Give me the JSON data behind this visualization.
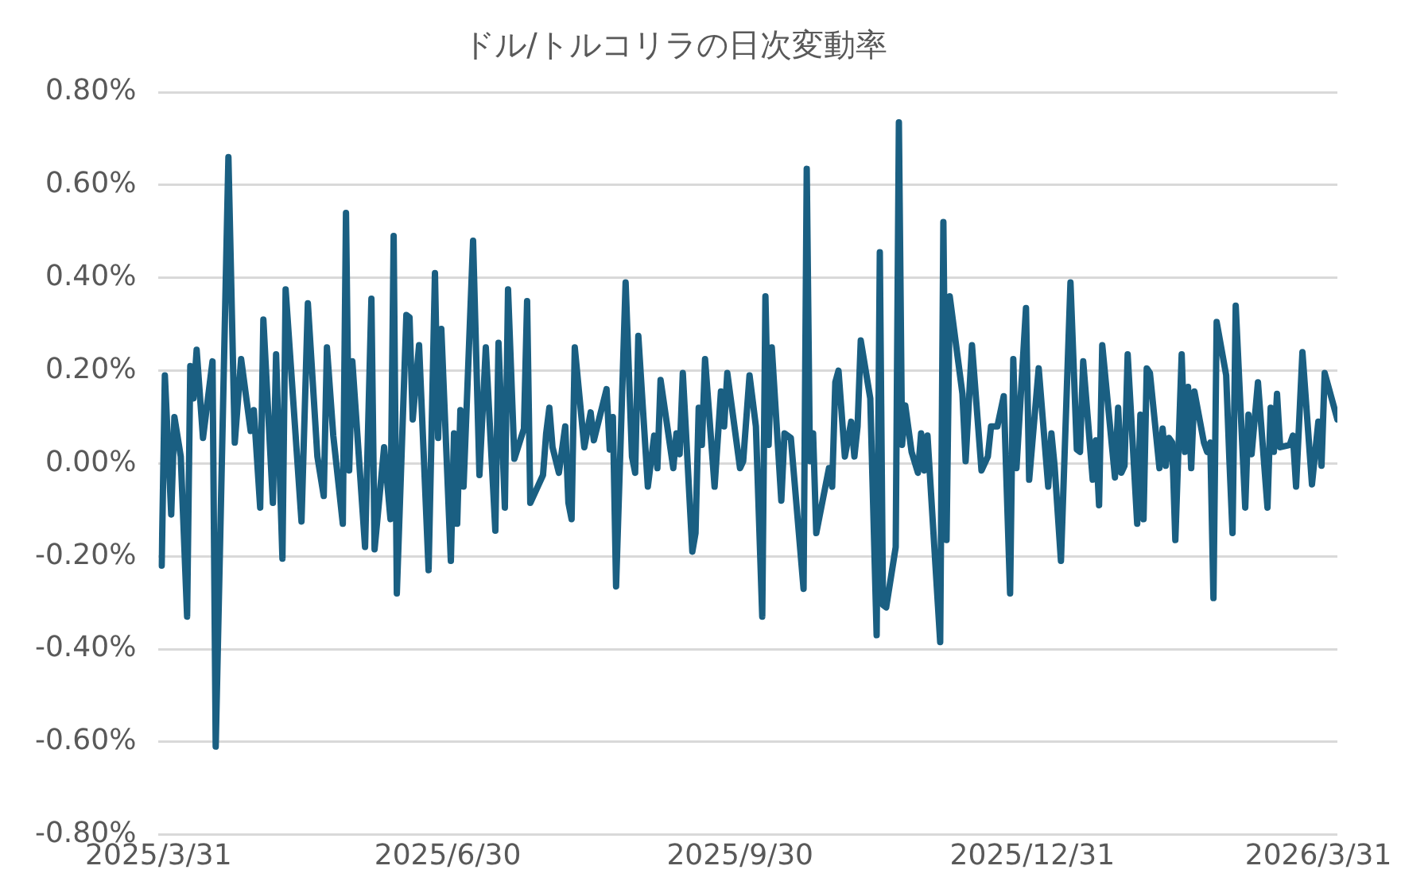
{
  "chart_data": {
    "type": "line",
    "title": "ドル/トルコリラの日次変動率",
    "xlim": [
      "2025-03-31",
      "2026-04-06"
    ],
    "xticks": [
      {
        "value": "2025-03-31",
        "label": "2025/3/31"
      },
      {
        "value": "2025-06-30",
        "label": "2025/6/30"
      },
      {
        "value": "2025-09-30",
        "label": "2025/9/30"
      },
      {
        "value": "2025-12-31",
        "label": "2025/12/31"
      },
      {
        "value": "2026-03-31",
        "label": "2026/3/31"
      }
    ],
    "ylim": [
      -0.8,
      0.8
    ],
    "yticks": [
      {
        "value": -0.8,
        "label": "-0.80%"
      },
      {
        "value": -0.6,
        "label": "-0.60%"
      },
      {
        "value": -0.4,
        "label": "-0.40%"
      },
      {
        "value": -0.2,
        "label": "-0.20%"
      },
      {
        "value": 0,
        "label": "0.00%"
      },
      {
        "value": 0.2,
        "label": "0.20%"
      },
      {
        "value": 0.4,
        "label": "0.40%"
      },
      {
        "value": 0.6,
        "label": "0.60%"
      },
      {
        "value": 0.8,
        "label": "0.80%"
      }
    ],
    "grid": "y",
    "marker": "none",
    "line_style": "solid",
    "x": [
      "2025-04-01",
      "2025-04-02",
      "2025-04-04",
      "2025-04-05",
      "2025-04-07",
      "2025-04-09",
      "2025-04-10",
      "2025-04-11",
      "2025-04-12",
      "2025-04-14",
      "2025-04-17",
      "2025-04-18",
      "2025-04-22",
      "2025-04-24",
      "2025-04-26",
      "2025-04-29",
      "2025-04-30",
      "2025-05-02",
      "2025-05-03",
      "2025-05-06",
      "2025-05-07",
      "2025-05-09",
      "2025-05-10",
      "2025-05-15",
      "2025-05-17",
      "2025-05-20",
      "2025-05-22",
      "2025-05-23",
      "2025-05-25",
      "2025-05-28",
      "2025-05-29",
      "2025-05-30",
      "2025-05-31",
      "2025-06-04",
      "2025-06-06",
      "2025-06-07",
      "2025-06-10",
      "2025-06-12",
      "2025-06-13",
      "2025-06-14",
      "2025-06-17",
      "2025-06-18",
      "2025-06-19",
      "2025-06-21",
      "2025-06-24",
      "2025-06-26",
      "2025-06-27",
      "2025-06-28",
      "2025-07-01",
      "2025-07-02",
      "2025-07-03",
      "2025-07-04",
      "2025-07-05",
      "2025-07-08",
      "2025-07-10",
      "2025-07-12",
      "2025-07-15",
      "2025-07-16",
      "2025-07-18",
      "2025-07-19",
      "2025-07-21",
      "2025-07-24",
      "2025-07-25",
      "2025-07-26",
      "2025-07-30",
      "2025-07-31",
      "2025-08-01",
      "2025-08-02",
      "2025-08-04",
      "2025-08-06",
      "2025-08-07",
      "2025-08-08",
      "2025-08-09",
      "2025-08-12",
      "2025-08-14",
      "2025-08-15",
      "2025-08-19",
      "2025-08-20",
      "2025-08-21",
      "2025-08-22",
      "2025-08-25",
      "2025-08-27",
      "2025-08-28",
      "2025-08-29",
      "2025-09-01",
      "2025-09-03",
      "2025-09-04",
      "2025-09-05",
      "2025-09-09",
      "2025-09-10",
      "2025-09-11",
      "2025-09-12",
      "2025-09-15",
      "2025-09-16",
      "2025-09-17",
      "2025-09-18",
      "2025-09-19",
      "2025-09-22",
      "2025-09-24",
      "2025-09-25",
      "2025-09-26",
      "2025-09-30",
      "2025-10-01",
      "2025-10-03",
      "2025-10-05",
      "2025-10-07",
      "2025-10-08",
      "2025-10-09",
      "2025-10-10",
      "2025-10-13",
      "2025-10-14",
      "2025-10-16",
      "2025-10-20",
      "2025-10-21",
      "2025-10-22",
      "2025-10-23",
      "2025-10-24",
      "2025-10-28",
      "2025-10-29",
      "2025-10-30",
      "2025-10-31",
      "2025-11-02",
      "2025-11-04",
      "2025-11-05",
      "2025-11-06",
      "2025-11-07",
      "2025-11-10",
      "2025-11-12",
      "2025-11-13",
      "2025-11-14",
      "2025-11-15",
      "2025-11-18",
      "2025-11-19",
      "2025-11-20",
      "2025-11-21",
      "2025-11-23",
      "2025-11-25",
      "2025-11-26",
      "2025-11-27",
      "2025-11-28",
      "2025-12-02",
      "2025-12-03",
      "2025-12-04",
      "2025-12-05",
      "2025-12-09",
      "2025-12-10",
      "2025-12-12",
      "2025-12-15",
      "2025-12-17",
      "2025-12-18",
      "2025-12-20",
      "2025-12-22",
      "2025-12-24",
      "2025-12-25",
      "2025-12-26",
      "2025-12-29",
      "2025-12-30",
      "2026-01-02",
      "2026-01-05",
      "2026-01-06",
      "2026-01-07",
      "2026-01-09",
      "2026-01-12",
      "2026-01-14",
      "2026-01-15",
      "2026-01-16",
      "2026-01-19",
      "2026-01-20",
      "2026-01-21",
      "2026-01-22",
      "2026-01-26",
      "2026-01-27",
      "2026-01-28",
      "2026-01-29",
      "2026-01-30",
      "2026-02-02",
      "2026-02-03",
      "2026-02-04",
      "2026-02-05",
      "2026-02-06",
      "2026-02-09",
      "2026-02-10",
      "2026-02-11",
      "2026-02-12",
      "2026-02-13",
      "2026-02-14",
      "2026-02-16",
      "2026-02-17",
      "2026-02-18",
      "2026-02-19",
      "2026-02-20",
      "2026-02-23",
      "2026-02-24",
      "2026-02-25",
      "2026-02-26",
      "2026-02-27",
      "2026-03-02",
      "2026-03-03",
      "2026-03-04",
      "2026-03-05",
      "2026-03-08",
      "2026-03-09",
      "2026-03-10",
      "2026-03-12",
      "2026-03-15",
      "2026-03-16",
      "2026-03-17",
      "2026-03-18",
      "2026-03-19",
      "2026-03-22",
      "2026-03-23",
      "2026-03-24",
      "2026-03-26",
      "2026-03-29",
      "2026-03-31",
      "2026-04-01",
      "2026-04-02",
      "2026-04-06"
    ],
    "series": [
      {
        "color": "#1a5f82",
        "values": [
          -0.22,
          0.19,
          -0.11,
          0.1,
          0.015,
          -0.33,
          0.21,
          0.14,
          0.245,
          0.055,
          0.22,
          -0.61,
          0.66,
          0.045,
          0.225,
          0.07,
          0.115,
          -0.095,
          0.31,
          -0.085,
          0.235,
          -0.205,
          0.375,
          -0.125,
          0.345,
          0.015,
          -0.07,
          0.25,
          0.06,
          -0.13,
          0.54,
          -0.015,
          0.22,
          -0.18,
          0.355,
          -0.185,
          0.035,
          -0.12,
          0.49,
          -0.28,
          0.32,
          0.315,
          0.095,
          0.255,
          -0.23,
          0.41,
          0.055,
          0.29,
          -0.21,
          0.065,
          -0.13,
          0.115,
          -0.05,
          0.48,
          -0.025,
          0.25,
          -0.145,
          0.26,
          -0.095,
          0.375,
          0.01,
          0.075,
          0.35,
          -0.085,
          -0.025,
          0.065,
          0.12,
          0.035,
          -0.02,
          0.08,
          -0.085,
          -0.12,
          0.25,
          0.035,
          0.11,
          0.05,
          0.16,
          0.03,
          0.1,
          -0.265,
          0.39,
          0.015,
          -0.02,
          0.275,
          -0.05,
          0.06,
          -0.01,
          0.18,
          -0.01,
          0.065,
          0.02,
          0.195,
          -0.19,
          -0.15,
          0.12,
          0.04,
          0.225,
          -0.05,
          0.155,
          0.08,
          0.195,
          -0.01,
          0.005,
          0.19,
          0.08,
          -0.33,
          0.36,
          0.04,
          0.25,
          -0.08,
          0.065,
          0.055,
          -0.27,
          0.635,
          0.005,
          0.065,
          -0.15,
          -0.01,
          -0.05,
          0.175,
          0.2,
          0.015,
          0.09,
          0.015,
          0.08,
          0.265,
          0.14,
          -0.37,
          0.455,
          -0.305,
          -0.31,
          -0.18,
          0.735,
          0.04,
          0.125,
          0.025,
          -0.02,
          0.065,
          -0.015,
          0.06,
          -0.385,
          0.52,
          -0.165,
          0.36,
          0.15,
          0.005,
          0.255,
          -0.015,
          0.015,
          0.08,
          0.08,
          0.145,
          -0.28,
          0.225,
          -0.01,
          0.335,
          -0.035,
          0.205,
          -0.05,
          0.065,
          -0.005,
          -0.21,
          0.39,
          0.03,
          0.025,
          0.22,
          -0.035,
          0.05,
          -0.09,
          0.255,
          -0.03,
          0.12,
          -0.02,
          -0.005,
          0.235,
          -0.13,
          0.105,
          -0.12,
          0.205,
          0.195,
          -0.01,
          0.075,
          -0.005,
          0.055,
          0.045,
          -0.165,
          0.235,
          0.025,
          0.165,
          -0.01,
          0.155,
          0.045,
          0.025,
          0.045,
          -0.29,
          0.305,
          0.19,
          0.01,
          -0.15,
          0.34,
          -0.095,
          0.105,
          0.02,
          0.175,
          -0.095,
          0.12,
          0.025,
          0.15,
          0.035,
          0.04,
          0.06,
          -0.05,
          0.24,
          -0.045,
          0.09,
          -0.005,
          0.195,
          0.095
        ]
      }
    ]
  }
}
